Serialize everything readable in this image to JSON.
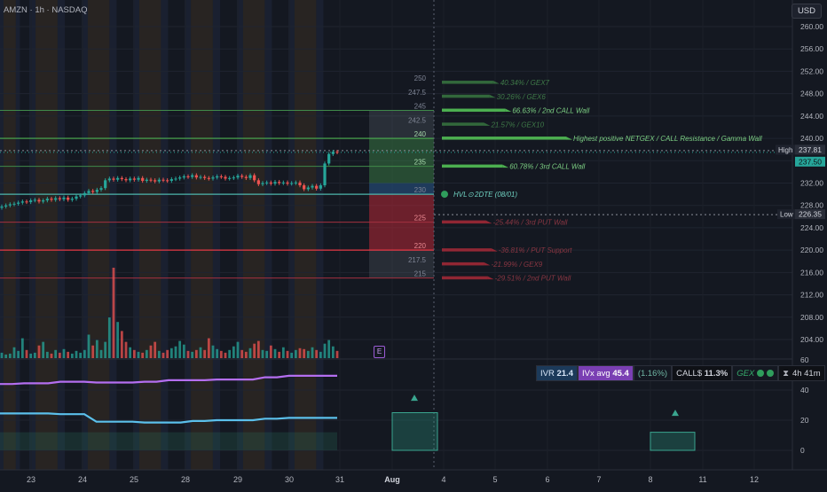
{
  "header": {
    "symbol": "AMZN · 1h · NASDAQ",
    "currency": "USD"
  },
  "price_axis": {
    "ticks": [
      "260.00",
      "256.00",
      "252.00",
      "248.00",
      "244.00",
      "240.00",
      "236.00",
      "232.00",
      "228.00",
      "224.00",
      "220.00",
      "216.00",
      "212.00",
      "208.00",
      "204.00"
    ],
    "ticks_values": [
      260,
      256,
      252,
      248,
      244,
      240,
      236,
      232,
      228,
      224,
      220,
      216,
      212,
      208,
      204
    ],
    "high_label": "High",
    "high_value": "237.81",
    "last_value": "237.50",
    "low_label": "Low",
    "low_value": "226.35"
  },
  "time_axis": {
    "labels": [
      "23",
      "24",
      "25",
      "28",
      "29",
      "30",
      "31",
      "Aug",
      "4",
      "5",
      "6",
      "7",
      "8",
      "11",
      "12"
    ]
  },
  "strike_labels": [
    "250",
    "247.5",
    "245",
    "242.5",
    "240",
    "235",
    "230",
    "225",
    "220",
    "217.5",
    "215"
  ],
  "gex_levels": [
    {
      "strike": 250,
      "label": "40.34% / GEX7",
      "kind": "call",
      "strength": 0.21
    },
    {
      "strike": 247.5,
      "label": "30.26% / GEX6",
      "kind": "call",
      "strength": 0.17
    },
    {
      "strike": 245,
      "label": "66.63% / 2nd CALL Wall",
      "kind": "call",
      "strength": 0.34
    },
    {
      "strike": 242.5,
      "label": "21.57% / GEX10",
      "kind": "call",
      "strength": 0.11
    },
    {
      "strike": 240,
      "label": "Highest positive NETGEX / CALL Resistance / Gamma Wall",
      "kind": "call",
      "strength": 1.0
    },
    {
      "strike": 235,
      "label": "60.78% / 3rd CALL Wall",
      "kind": "call",
      "strength": 0.31
    },
    {
      "strike": 225,
      "label": "-25.44% / 3rd PUT Wall",
      "kind": "put",
      "strength": 0.13
    },
    {
      "strike": 220,
      "label": "-36.81% / PUT Support",
      "kind": "put",
      "strength": 0.19
    },
    {
      "strike": 217.5,
      "label": "-21.99% / GEX9",
      "kind": "put",
      "strength": 0.11
    },
    {
      "strike": 215,
      "label": "-29.51% / 2nd PUT Wall",
      "kind": "put",
      "strength": 0.15
    }
  ],
  "hvl": {
    "label": "HVL",
    "suffix": "2DTE (08/01)",
    "strike": 230
  },
  "oscillator_axis": {
    "ticks": [
      "60",
      "40",
      "20",
      "0"
    ],
    "values": [
      60,
      40,
      20,
      0
    ]
  },
  "status_bar": {
    "ivr_label": "IVR",
    "ivr_value": "21.4",
    "ivx_label": "IVx avg",
    "ivx_value": "45.4",
    "iv_change": "(1.16%)",
    "call_label": "CALL$",
    "call_value": "11.3%",
    "gex_label": "GEX",
    "timer": "4h 41m"
  },
  "event_marker": "E",
  "colors": {
    "background": "#141821",
    "call": "#3f8a4a",
    "put": "#c9313f",
    "candle_up": "#26a69a",
    "candle_down": "#ef5350",
    "hvl_line": "#4db6ac",
    "ivx_line": "#b46ef0",
    "ivr_line": "#5bc0eb"
  },
  "chart_data": {
    "type": "line",
    "price_candles_close": [
      227.8,
      228.0,
      228.2,
      228.3,
      228.5,
      228.7,
      228.6,
      228.9,
      229.0,
      228.7,
      228.9,
      229.2,
      229.0,
      229.3,
      229.1,
      229.4,
      229.0,
      229.2,
      229.6,
      229.8,
      230.2,
      230.6,
      230.4,
      230.8,
      231.1,
      232.5,
      232.8,
      232.6,
      232.9,
      232.7,
      232.5,
      232.8,
      232.6,
      232.9,
      232.4,
      232.6,
      232.5,
      232.3,
      232.6,
      232.5,
      232.4,
      232.7,
      232.8,
      233.0,
      233.2,
      233.1,
      233.4,
      233.0,
      233.1,
      232.9,
      232.8,
      233.0,
      233.2,
      233.1,
      232.8,
      232.9,
      233.0,
      233.3,
      233.1,
      232.9,
      233.4,
      232.5,
      231.8,
      232.0,
      232.1,
      231.9,
      232.2,
      232.0,
      232.1,
      231.9,
      232.0,
      232.1,
      231.6,
      230.9,
      231.2,
      231.5,
      231.0,
      231.6,
      235.5,
      237.2,
      237.6,
      237.5
    ],
    "series": [
      {
        "name": "IVx",
        "values": [
          44,
          44,
          44.5,
          44.5,
          44.5,
          45.5,
          45.5,
          45.5,
          45,
          45,
          45,
          45,
          45.5,
          45.5,
          46.5,
          46.5,
          46.5,
          46.5,
          47,
          47,
          47,
          47,
          48.5,
          48.5,
          49.5,
          49.5,
          49.5,
          49.5,
          49.5
        ]
      },
      {
        "name": "IVR",
        "values": [
          24.5,
          24.5,
          24.5,
          24.5,
          24.5,
          24,
          24,
          24,
          19,
          19,
          19,
          19,
          18.5,
          18.5,
          18.5,
          18.5,
          19.5,
          19.5,
          20,
          20,
          20,
          20,
          21,
          21,
          21.5,
          21.5,
          21.5,
          21.5,
          21.5
        ]
      }
    ],
    "ylim": [
      202,
      262
    ],
    "oscillator_ylim": [
      -5,
      60
    ]
  }
}
